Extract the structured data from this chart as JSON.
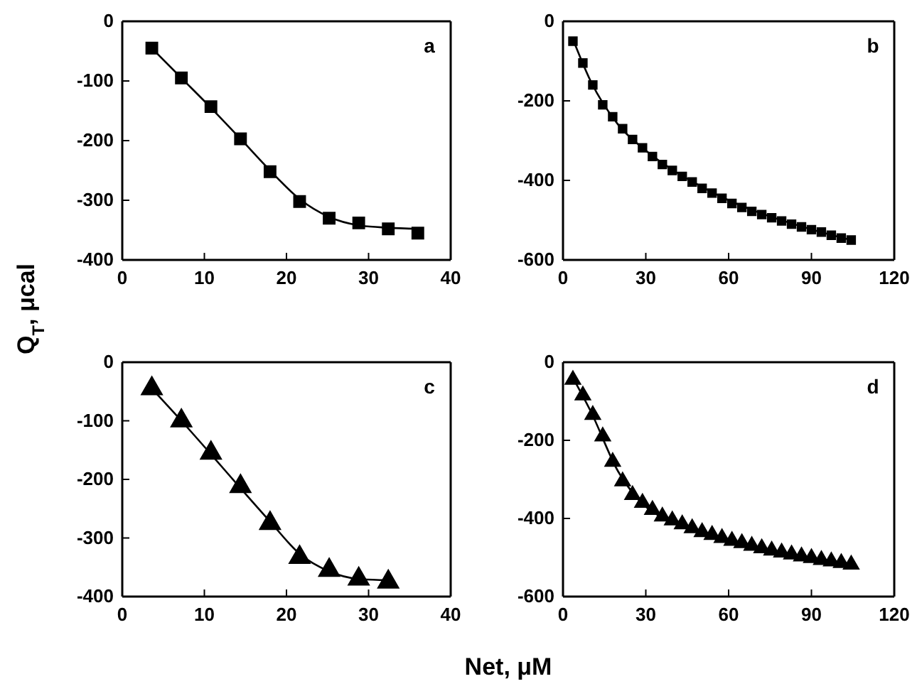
{
  "chart_data": [
    {
      "type": "scatter",
      "ylabel": "Q$_{T}$, μcal",
      "annotations": [
        "a"
      ],
      "xlim": [
        0,
        40
      ],
      "xticks": [
        0,
        10,
        20,
        30,
        40
      ],
      "ylim": [
        -400,
        0
      ],
      "yticks": [
        0,
        -100,
        -200,
        -300,
        -400
      ],
      "grid": false,
      "series": [
        {
          "type": "line",
          "color": "#000000",
          "line_style": "solid",
          "marker": "none",
          "x": [
            3.6,
            7.2,
            10.8,
            14.4,
            18,
            21.6,
            25.2,
            28.8,
            32.4,
            36
          ],
          "values": [
            -45,
            -95,
            -145,
            -197,
            -250,
            -298,
            -328,
            -342,
            -346,
            -348
          ]
        },
        {
          "type": "scatter",
          "color": "#000000",
          "marker": "square",
          "x": [
            3.6,
            7.2,
            10.8,
            14.4,
            18,
            21.6,
            25.2,
            28.8,
            32.4,
            36
          ],
          "values": [
            -45,
            -95,
            -143,
            -197,
            -252,
            -302,
            -330,
            -338,
            -348,
            -355
          ]
        }
      ]
    },
    {
      "type": "scatter",
      "annotations": [
        "b"
      ],
      "xlim": [
        0,
        120
      ],
      "xticks": [
        0,
        30,
        60,
        90,
        120
      ],
      "ylim": [
        -600,
        0
      ],
      "yticks": [
        0,
        -200,
        -400,
        -600
      ],
      "grid": false,
      "series": [
        {
          "type": "line",
          "color": "#000000",
          "line_style": "solid",
          "marker": "none",
          "x": [
            3.6,
            10,
            20,
            30,
            40,
            50,
            60,
            70,
            80,
            90,
            104.4
          ],
          "values": [
            -45,
            -150,
            -260,
            -325,
            -375,
            -415,
            -450,
            -478,
            -502,
            -523,
            -550
          ]
        },
        {
          "type": "scatter",
          "color": "#000000",
          "marker": "square",
          "x": [
            3.6,
            7.2,
            10.8,
            14.4,
            18,
            21.6,
            25.2,
            28.8,
            32.4,
            36,
            39.6,
            43.2,
            46.8,
            50.4,
            54,
            57.6,
            61.2,
            64.8,
            68.4,
            72,
            75.6,
            79.2,
            82.8,
            86.4,
            90,
            93.6,
            97.2,
            100.8,
            104.4
          ],
          "values": [
            -50,
            -105,
            -160,
            -210,
            -240,
            -270,
            -297,
            -318,
            -340,
            -360,
            -375,
            -390,
            -404,
            -420,
            -432,
            -445,
            -458,
            -468,
            -478,
            -486,
            -494,
            -502,
            -510,
            -517,
            -524,
            -530,
            -538,
            -545,
            -550
          ]
        }
      ]
    },
    {
      "type": "scatter",
      "xlabel": "Net, μM",
      "annotations": [
        "c"
      ],
      "xlim": [
        0,
        40
      ],
      "xticks": [
        0,
        10,
        20,
        30,
        40
      ],
      "ylim": [
        -400,
        0
      ],
      "yticks": [
        0,
        -100,
        -200,
        -300,
        -400
      ],
      "grid": false,
      "series": [
        {
          "type": "line",
          "color": "#000000",
          "line_style": "solid",
          "marker": "none",
          "x": [
            3.6,
            7.2,
            10.8,
            14.4,
            18,
            21.6,
            25.2,
            28.8,
            32.4
          ],
          "values": [
            -45,
            -100,
            -157,
            -215,
            -272,
            -327,
            -357,
            -370,
            -372
          ]
        },
        {
          "type": "scatter",
          "color": "#000000",
          "marker": "triangle",
          "x": [
            3.6,
            7.2,
            10.8,
            14.4,
            18,
            21.6,
            25.2,
            28.8,
            32.4
          ],
          "values": [
            -45,
            -100,
            -155,
            -212,
            -275,
            -333,
            -355,
            -370,
            -375
          ]
        }
      ]
    },
    {
      "type": "scatter",
      "annotations": [
        "d"
      ],
      "xlim": [
        0,
        120
      ],
      "xticks": [
        0,
        30,
        60,
        90,
        120
      ],
      "ylim": [
        -600,
        0
      ],
      "yticks": [
        0,
        -200,
        -400,
        -600
      ],
      "grid": false,
      "series": [
        {
          "type": "line",
          "color": "#000000",
          "line_style": "solid",
          "marker": "none",
          "x": [
            3.6,
            10,
            20,
            30,
            40,
            50,
            60,
            70,
            80,
            90,
            104.4
          ],
          "values": [
            -40,
            -125,
            -280,
            -370,
            -408,
            -435,
            -455,
            -473,
            -488,
            -502,
            -518
          ]
        },
        {
          "type": "scatter",
          "color": "#000000",
          "marker": "triangle",
          "x": [
            3.6,
            7.2,
            10.8,
            14.4,
            18,
            21.6,
            25.2,
            28.8,
            32.4,
            36,
            39.6,
            43.2,
            46.8,
            50.4,
            54,
            57.6,
            61.2,
            64.8,
            68.4,
            72,
            75.6,
            79.2,
            82.8,
            86.4,
            90,
            93.6,
            97.2,
            100.8,
            104.4
          ],
          "values": [
            -45,
            -85,
            -135,
            -190,
            -255,
            -305,
            -340,
            -360,
            -378,
            -395,
            -405,
            -415,
            -425,
            -435,
            -442,
            -450,
            -457,
            -463,
            -470,
            -476,
            -482,
            -487,
            -492,
            -497,
            -501,
            -506,
            -510,
            -514,
            -518
          ]
        }
      ]
    }
  ]
}
